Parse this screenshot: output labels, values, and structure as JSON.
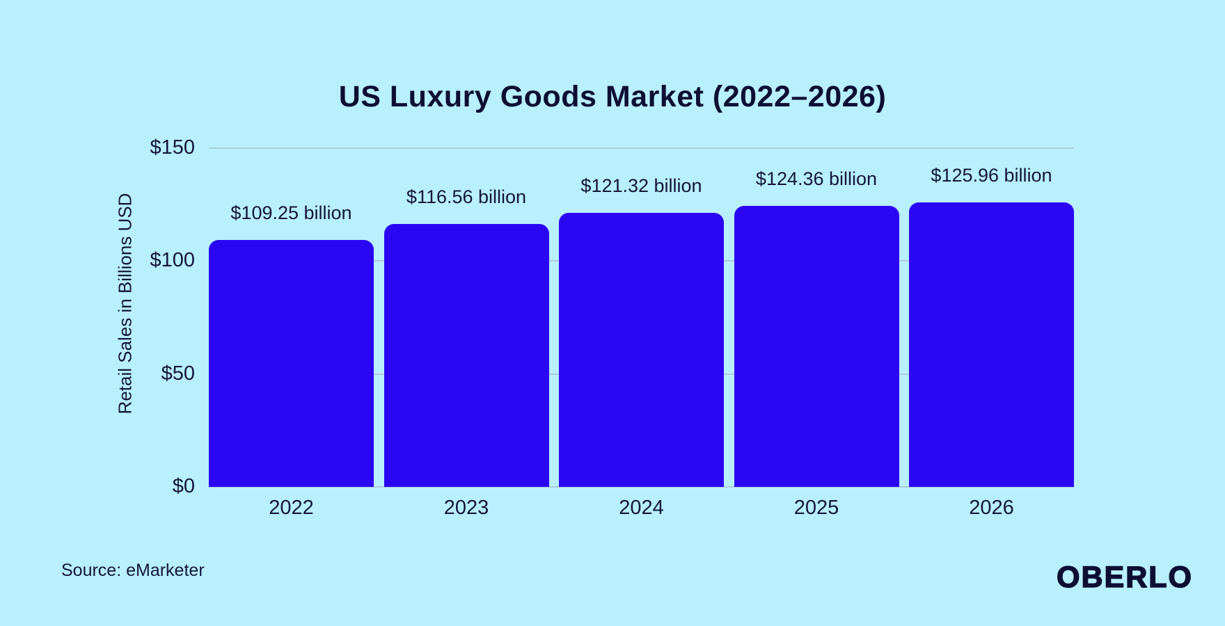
{
  "title": "US Luxury Goods Market (2022–2026)",
  "source_note": "Source: eMarketer",
  "brand": "OBERLO",
  "colors": {
    "background": "#b9f0fd",
    "bar": "#2b06f3",
    "text": "#15153b",
    "title_text": "#0e0e33",
    "grid": "#aecbd8"
  },
  "chart_data": {
    "type": "bar",
    "title": "US Luxury Goods Market (2022–2026)",
    "categories": [
      "2022",
      "2023",
      "2024",
      "2025",
      "2026"
    ],
    "values": [
      109.25,
      116.56,
      121.32,
      124.36,
      125.96
    ],
    "value_labels": [
      "$109.25 billion",
      "$116.56 billion",
      "$121.32 billion",
      "$124.36 billion",
      "$125.96 billion"
    ],
    "xlabel": "",
    "ylabel": "Retail Sales in Billions USD",
    "ylim": [
      0,
      150
    ],
    "yticks": [
      {
        "value": 0,
        "label": "$0"
      },
      {
        "value": 50,
        "label": "$50"
      },
      {
        "value": 100,
        "label": "$100"
      },
      {
        "value": 150,
        "label": "$150"
      }
    ],
    "grid": true,
    "legend": "none",
    "source": "eMarketer"
  }
}
